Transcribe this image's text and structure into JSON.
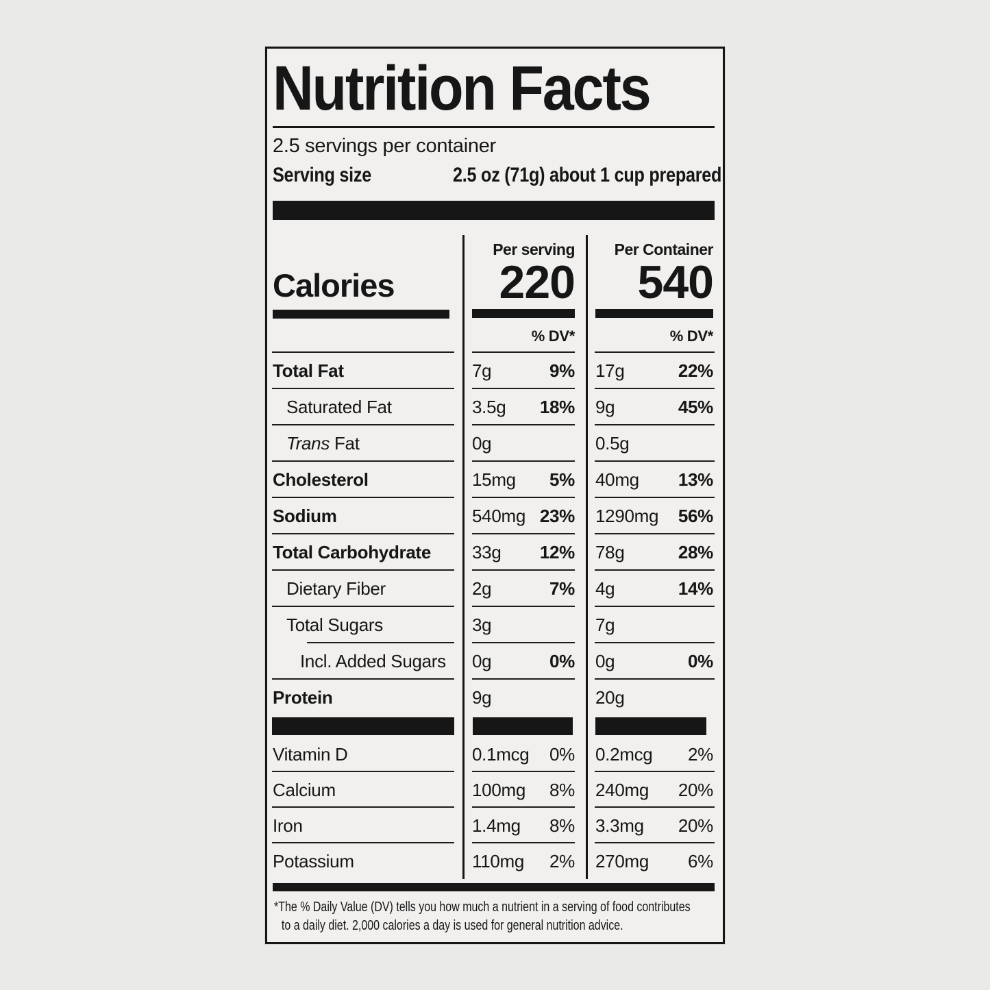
{
  "page": {
    "background_color": "#eaeae8",
    "label_background_color": "#f1f0ee",
    "ink_color": "#161616"
  },
  "label": {
    "title": "Nutrition Facts",
    "servings_per_container": "2.5 servings per container",
    "serving_size": {
      "label": "Serving size",
      "value": "2.5 oz (71g) about 1 cup prepared"
    },
    "calories": {
      "label": "Calories",
      "columns": [
        {
          "header": "Per serving",
          "value": "220"
        },
        {
          "header": "Per Container",
          "value": "540"
        }
      ],
      "dv_header": "% DV*"
    },
    "nutrient_rows": [
      {
        "name": "Total Fat",
        "bold": true,
        "indent": 0,
        "serving_amount": "7g",
        "serving_dv": "9%",
        "container_amount": "17g",
        "container_dv": "22%"
      },
      {
        "name": "Saturated Fat",
        "bold": false,
        "indent": 1,
        "serving_amount": "3.5g",
        "serving_dv": "18%",
        "container_amount": "9g",
        "container_dv": "45%"
      },
      {
        "name_italic": "Trans",
        "name": " Fat",
        "bold": false,
        "indent": 1,
        "serving_amount": "0g",
        "serving_dv": "",
        "container_amount": "0.5g",
        "container_dv": ""
      },
      {
        "name": "Cholesterol",
        "bold": true,
        "indent": 0,
        "serving_amount": "15mg",
        "serving_dv": "5%",
        "container_amount": "40mg",
        "container_dv": "13%"
      },
      {
        "name": "Sodium",
        "bold": true,
        "indent": 0,
        "serving_amount": "540mg",
        "serving_dv": "23%",
        "container_amount": "1290mg",
        "container_dv": "56%"
      },
      {
        "name": "Total Carbohydrate",
        "bold": true,
        "indent": 0,
        "serving_amount": "33g",
        "serving_dv": "12%",
        "container_amount": "78g",
        "container_dv": "28%"
      },
      {
        "name": "Dietary Fiber",
        "bold": false,
        "indent": 1,
        "serving_amount": "2g",
        "serving_dv": "7%",
        "container_amount": "4g",
        "container_dv": "14%"
      },
      {
        "name": "Total Sugars",
        "bold": false,
        "indent": 1,
        "serving_amount": "3g",
        "serving_dv": "",
        "container_amount": "7g",
        "container_dv": "",
        "sep_below_indented": true
      },
      {
        "name": "Incl. Added Sugars",
        "bold": false,
        "indent": 2,
        "serving_amount": "0g",
        "serving_dv": "0%",
        "container_amount": "0g",
        "container_dv": "0%"
      },
      {
        "name": "Protein",
        "bold": true,
        "indent": 0,
        "serving_amount": "9g",
        "serving_dv": "",
        "container_amount": "20g",
        "container_dv": "",
        "last": true
      }
    ],
    "vitamin_rows": [
      {
        "name": "Vitamin D",
        "serving_amount": "0.1mcg",
        "serving_dv": "0%",
        "container_amount": "0.2mcg",
        "container_dv": "2%"
      },
      {
        "name": "Calcium",
        "serving_amount": "100mg",
        "serving_dv": "8%",
        "container_amount": "240mg",
        "container_dv": "20%"
      },
      {
        "name": "Iron",
        "serving_amount": "1.4mg",
        "serving_dv": "8%",
        "container_amount": "3.3mg",
        "container_dv": "20%"
      },
      {
        "name": "Potassium",
        "serving_amount": "110mg",
        "serving_dv": "2%",
        "container_amount": "270mg",
        "container_dv": "6%",
        "last": true
      }
    ],
    "footnote": {
      "line1": "*The % Daily Value (DV) tells you how much a nutrient in a serving of food contributes",
      "line2": "to a daily diet. 2,000 calories a day is used for general nutrition advice."
    }
  }
}
